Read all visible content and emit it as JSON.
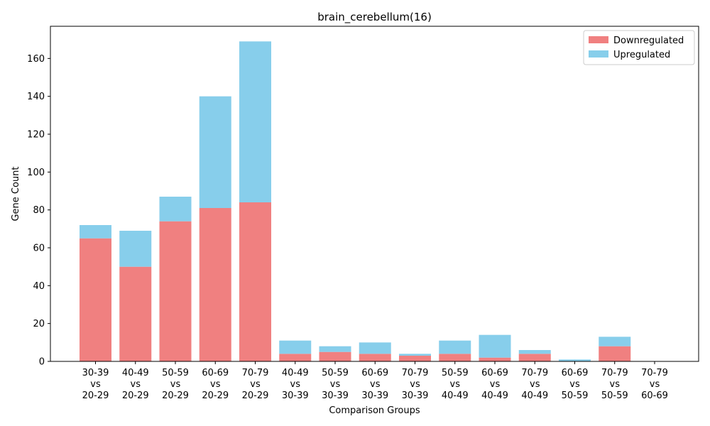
{
  "chart_data": {
    "type": "bar",
    "stacked": true,
    "title": "brain_cerebellum(16)",
    "xlabel": "Comparison Groups",
    "ylabel": "Gene Count",
    "ylim": [
      0,
      177
    ],
    "yticks": [
      0,
      20,
      40,
      60,
      80,
      100,
      120,
      140,
      160
    ],
    "categories": [
      [
        "30-39",
        "vs",
        "20-29"
      ],
      [
        "40-49",
        "vs",
        "20-29"
      ],
      [
        "50-59",
        "vs",
        "20-29"
      ],
      [
        "60-69",
        "vs",
        "20-29"
      ],
      [
        "70-79",
        "vs",
        "20-29"
      ],
      [
        "40-49",
        "vs",
        "30-39"
      ],
      [
        "50-59",
        "vs",
        "30-39"
      ],
      [
        "60-69",
        "vs",
        "30-39"
      ],
      [
        "70-79",
        "vs",
        "30-39"
      ],
      [
        "50-59",
        "vs",
        "40-49"
      ],
      [
        "60-69",
        "vs",
        "40-49"
      ],
      [
        "70-79",
        "vs",
        "40-49"
      ],
      [
        "60-69",
        "vs",
        "50-59"
      ],
      [
        "70-79",
        "vs",
        "50-59"
      ],
      [
        "70-79",
        "vs",
        "60-69"
      ]
    ],
    "series": [
      {
        "name": "Downregulated",
        "color": "#f08080",
        "values": [
          65,
          50,
          74,
          81,
          84,
          4,
          5,
          4,
          3,
          4,
          2,
          4,
          0,
          8,
          0
        ]
      },
      {
        "name": "Upregulated",
        "color": "#87ceeb",
        "values": [
          7,
          19,
          13,
          59,
          85,
          7,
          3,
          6,
          1,
          7,
          12,
          2,
          1,
          5,
          0
        ]
      }
    ],
    "legend_position": "top-right",
    "grid": false
  }
}
